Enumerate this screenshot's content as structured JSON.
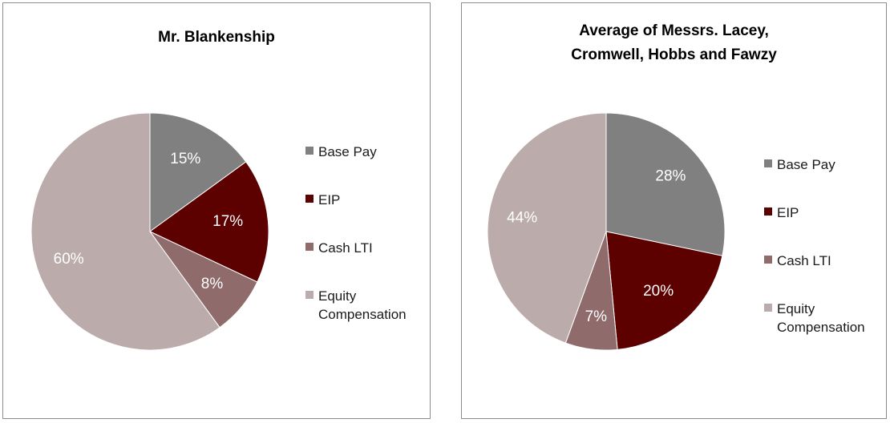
{
  "chart_data": [
    {
      "type": "pie",
      "title_lines": [
        "Mr. Blankenship"
      ],
      "categories": [
        "Base Pay",
        "EIP",
        "Cash LTI",
        "Equity Compensation"
      ],
      "values": [
        15,
        17,
        8,
        60
      ],
      "data_labels": [
        "15%",
        "17%",
        "8%",
        "60%"
      ],
      "colors": [
        "#808080",
        "#5c0000",
        "#8f6b6b",
        "#bcabab"
      ],
      "legend_position": "right"
    },
    {
      "type": "pie",
      "title_lines": [
        "Average of Messrs. Lacey,",
        "Cromwell, Hobbs and Fawzy"
      ],
      "categories": [
        "Base Pay",
        "EIP",
        "Cash LTI",
        "Equity Compensation"
      ],
      "values": [
        28,
        20,
        7,
        44
      ],
      "data_labels": [
        "28%",
        "20%",
        "7%",
        "44%"
      ],
      "colors": [
        "#808080",
        "#5c0000",
        "#8f6b6b",
        "#bcabab"
      ],
      "legend_position": "right"
    }
  ],
  "legend": {
    "items": [
      {
        "label": "Base Pay",
        "color": "#808080"
      },
      {
        "label": "EIP",
        "color": "#5c0000"
      },
      {
        "label": "Cash LTI",
        "color": "#8f6b6b"
      },
      {
        "label_line1": "Equity",
        "label_line2": "Compensation",
        "color": "#bcabab"
      }
    ]
  }
}
